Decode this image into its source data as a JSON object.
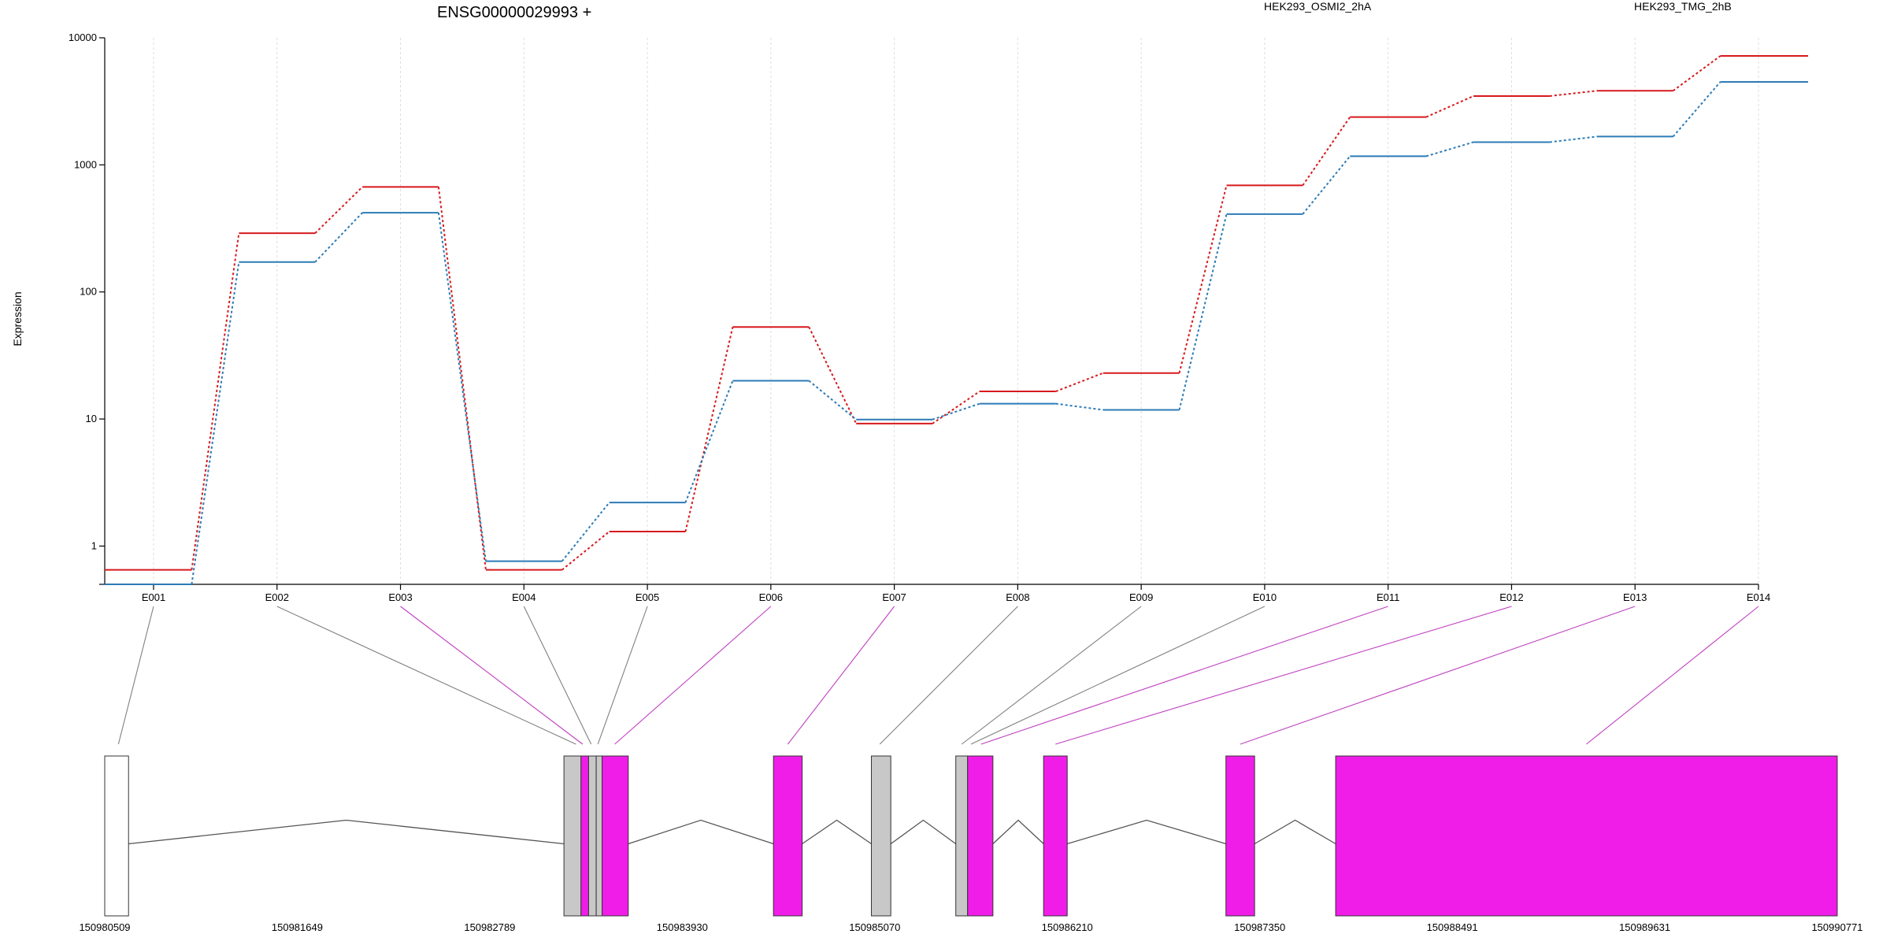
{
  "chart_data": {
    "type": "line",
    "title": "ENSG00000029993 +",
    "xlabel": "",
    "ylabel": "Expression",
    "yscale": "log",
    "ylim": [
      0.5,
      10000
    ],
    "yticks": [
      1,
      10,
      100,
      1000,
      10000
    ],
    "ytick_labels": [
      "1",
      "10",
      "100",
      "1000",
      "10000"
    ],
    "grid": "vertical dashed",
    "legend_placement": "top-right",
    "categories": [
      "E001",
      "E002",
      "E003",
      "E004",
      "E005",
      "E006",
      "E007",
      "E008",
      "E009",
      "E010",
      "E011",
      "E012",
      "E013",
      "E014"
    ],
    "series": [
      {
        "name": "HEK293_OSMI2_2hA",
        "color": "#d7191c",
        "values": [
          0.65,
          290,
          670,
          0.65,
          1.3,
          53,
          9.2,
          16.5,
          23,
          690,
          2380,
          3480,
          3830,
          7200
        ]
      },
      {
        "name": "HEK293_TMG_2hB",
        "color": "#2c7bb6",
        "values": [
          0.5,
          172,
          420,
          0.76,
          2.2,
          20,
          9.9,
          13.2,
          11.8,
          410,
          1170,
          1510,
          1670,
          4500
        ]
      }
    ],
    "gene_model": {
      "start": 150980509,
      "end": 150990771,
      "coordinate_ticks": [
        "150980509",
        "150981649",
        "150982789",
        "150983930",
        "150985070",
        "150986210",
        "150987350",
        "150988491",
        "150989631",
        "150990771"
      ],
      "exons": [
        {
          "s": 150980509,
          "e": 150980650,
          "fill": "#ffffff"
        },
        {
          "s": 150983229,
          "e": 150983330,
          "fill": "#c8c8c8"
        },
        {
          "s": 150983330,
          "e": 150983375,
          "fill": "#f01de8"
        },
        {
          "s": 150983375,
          "e": 150983420,
          "fill": "#c8c8c8"
        },
        {
          "s": 150983420,
          "e": 150983455,
          "fill": "#c8c8c8"
        },
        {
          "s": 150983455,
          "e": 150983610,
          "fill": "#f01de8"
        },
        {
          "s": 150984470,
          "e": 150984640,
          "fill": "#f01de8"
        },
        {
          "s": 150985050,
          "e": 150985165,
          "fill": "#c8c8c8"
        },
        {
          "s": 150985550,
          "e": 150985620,
          "fill": "#c8c8c8"
        },
        {
          "s": 150985620,
          "e": 150985770,
          "fill": "#f01de8"
        },
        {
          "s": 150986070,
          "e": 150986210,
          "fill": "#f01de8"
        },
        {
          "s": 150987150,
          "e": 150987320,
          "fill": "#f01de8"
        },
        {
          "s": 150987800,
          "e": 150990771,
          "fill": "#f01de8"
        }
      ],
      "links": [
        {
          "pos": 150980590,
          "color": "#808080"
        },
        {
          "pos": 150983300,
          "color": "#808080"
        },
        {
          "pos": 150983340,
          "color": "#c040c0"
        },
        {
          "pos": 150983390,
          "color": "#808080"
        },
        {
          "pos": 150983430,
          "color": "#808080"
        },
        {
          "pos": 150983530,
          "color": "#c040c0"
        },
        {
          "pos": 150984555,
          "color": "#c040c0"
        },
        {
          "pos": 150985100,
          "color": "#808080"
        },
        {
          "pos": 150985585,
          "color": "#808080"
        },
        {
          "pos": 150985640,
          "color": "#808080"
        },
        {
          "pos": 150985700,
          "color": "#c040c0"
        },
        {
          "pos": 150986140,
          "color": "#c040c0"
        },
        {
          "pos": 150987235,
          "color": "#c040c0"
        },
        {
          "pos": 150989285,
          "color": "#c040c0"
        }
      ]
    }
  }
}
